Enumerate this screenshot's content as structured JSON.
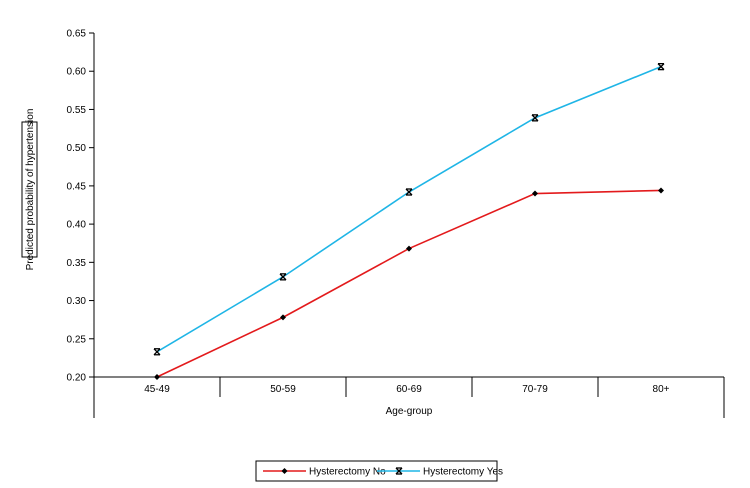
{
  "chart_data": {
    "type": "line",
    "categories": [
      "45-49",
      "50-59",
      "60-69",
      "70-79",
      "80+"
    ],
    "series": [
      {
        "name": "Hysterectomy No",
        "values": [
          0.2,
          0.278,
          0.368,
          0.44,
          0.444
        ],
        "color": "#e31a1c",
        "marker": "diamond"
      },
      {
        "name": "Hysterectomy Yes",
        "values": [
          0.233,
          0.331,
          0.442,
          0.539,
          0.606
        ],
        "color": "#1fb5e6",
        "marker": "x-bar"
      }
    ],
    "xlabel": "Age-group",
    "ylabel": "Predicted probability of hypertension",
    "ylim": [
      0.2,
      0.65
    ],
    "yticks": [
      "0.20",
      "0.25",
      "0.30",
      "0.35",
      "0.40",
      "0.45",
      "0.50",
      "0.55",
      "0.60",
      "0.65"
    ],
    "grid": false,
    "legend_position": "bottom"
  }
}
